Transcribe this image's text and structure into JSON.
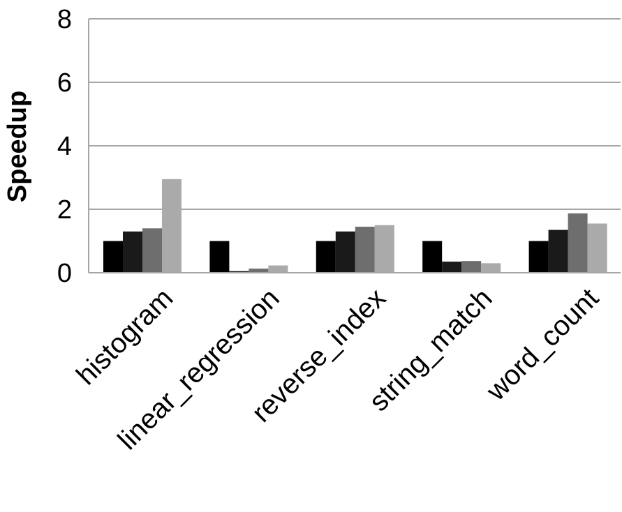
{
  "chart_data": {
    "type": "bar",
    "title": "",
    "xlabel": "",
    "ylabel": "Speedup",
    "ylim": [
      0,
      8
    ],
    "yticks": [
      0,
      2,
      4,
      6,
      8
    ],
    "grid": true,
    "categories": [
      "histogram",
      "linear_regression",
      "reverse_index",
      "string_match",
      "word_count"
    ],
    "series": [
      {
        "color": "#000000",
        "values": [
          1.0,
          1.0,
          1.0,
          1.0,
          1.0
        ]
      },
      {
        "color": "#1a1a1a",
        "values": [
          1.3,
          0.05,
          1.3,
          0.35,
          1.35
        ]
      },
      {
        "color": "#6e6e6e",
        "values": [
          1.4,
          0.13,
          1.45,
          0.37,
          1.87
        ]
      },
      {
        "color": "#aaaaaa",
        "values": [
          2.95,
          0.23,
          1.5,
          0.3,
          1.55
        ]
      }
    ]
  },
  "colors": {
    "gridline": "#a6a6a6",
    "axis": "#a6a6a6"
  }
}
